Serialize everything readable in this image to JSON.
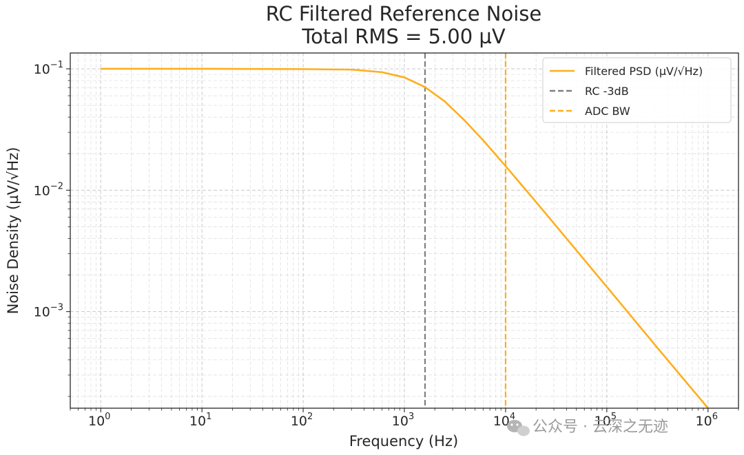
{
  "chart_data": {
    "type": "line",
    "title": "RC Filtered Reference Noise",
    "subtitle": "Total RMS = 5.00 µV",
    "xlabel": "Frequency (Hz)",
    "ylabel": "Noise Density (µV/√Hz)",
    "x_scale": "log",
    "y_scale": "log",
    "xlim": [
      0.5,
      2000000
    ],
    "ylim": [
      0.00016,
      0.135
    ],
    "grid": true,
    "legend_position": "top-right",
    "x_ticks": [
      {
        "base": "10",
        "exp": "0",
        "value": 1
      },
      {
        "base": "10",
        "exp": "1",
        "value": 10
      },
      {
        "base": "10",
        "exp": "2",
        "value": 100
      },
      {
        "base": "10",
        "exp": "3",
        "value": 1000
      },
      {
        "base": "10",
        "exp": "4",
        "value": 10000
      },
      {
        "base": "10",
        "exp": "5",
        "value": 100000
      },
      {
        "base": "10",
        "exp": "6",
        "value": 1000000
      }
    ],
    "y_ticks": [
      {
        "base": "10",
        "exp": "−1",
        "value": 0.1
      },
      {
        "base": "10",
        "exp": "−2",
        "value": 0.01
      },
      {
        "base": "10",
        "exp": "−3",
        "value": 0.001
      }
    ],
    "series": [
      {
        "name": "Filtered PSD (µV/√Hz)",
        "color": "#ffae19",
        "style": "solid",
        "x": [
          1,
          10,
          100,
          300,
          600,
          1000,
          1600,
          2500,
          4000,
          6000,
          10000,
          20000,
          50000,
          100000,
          300000,
          1000000
        ],
        "y": [
          0.1,
          0.1,
          0.0995,
          0.0985,
          0.0938,
          0.085,
          0.0707,
          0.054,
          0.037,
          0.0258,
          0.0158,
          0.008,
          0.0032,
          0.0016,
          0.00053,
          0.00016
        ]
      }
    ],
    "vlines": [
      {
        "name": "RC -3dB",
        "x": 1600,
        "color": "#7f7f7f",
        "style": "dashed"
      },
      {
        "name": "ADC BW",
        "x": 10000,
        "color": "#ffae19",
        "style": "dashed"
      }
    ]
  },
  "watermark": "公众号 · 云深之无迹"
}
